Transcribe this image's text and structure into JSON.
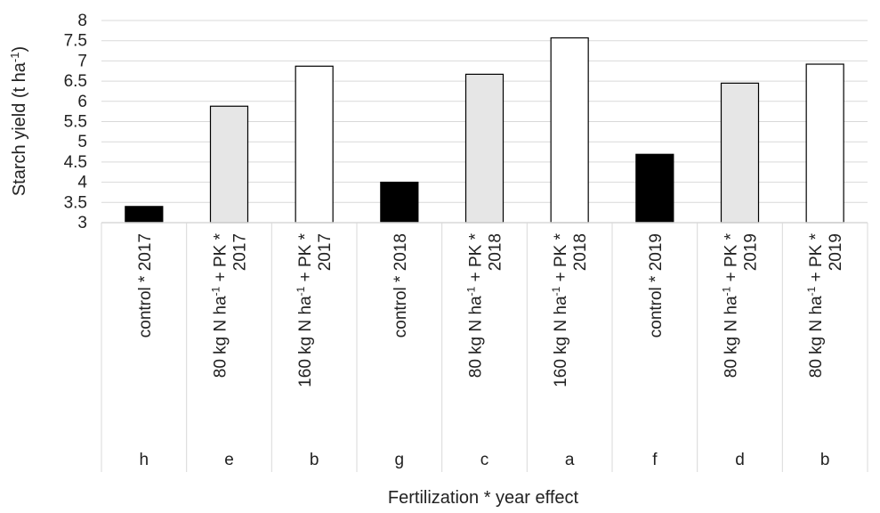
{
  "chart_data": {
    "type": "bar",
    "ylabel": "Starch yield (t ha",
    "ylabel_sup": "-1",
    "ylabel_tail": ")",
    "xlabel": "Fertilization * year effect",
    "ylim": [
      3,
      8
    ],
    "yticks": [
      "3",
      "3.5",
      "4",
      "4.5",
      "5",
      "5.5",
      "6",
      "6.5",
      "7",
      "7.5",
      "8"
    ],
    "grid": true,
    "legend": "none",
    "categories": [
      {
        "lines": [
          [
            "control * 2017"
          ]
        ],
        "letter": "h"
      },
      {
        "lines": [
          [
            "80 kg N ha",
            "-1",
            " + PK *"
          ],
          [
            "2017"
          ]
        ],
        "letter": "e"
      },
      {
        "lines": [
          [
            "160 kg N ha",
            "-1",
            " + PK *"
          ],
          [
            "2017"
          ]
        ],
        "letter": "b"
      },
      {
        "lines": [
          [
            "control * 2018"
          ]
        ],
        "letter": "g"
      },
      {
        "lines": [
          [
            "80 kg N ha",
            "-1",
            " + PK *"
          ],
          [
            "2018"
          ]
        ],
        "letter": "c"
      },
      {
        "lines": [
          [
            "160 kg N ha",
            "-1",
            " + PK *"
          ],
          [
            "2018"
          ]
        ],
        "letter": "a"
      },
      {
        "lines": [
          [
            "control * 2019"
          ]
        ],
        "letter": "f"
      },
      {
        "lines": [
          [
            "80 kg N ha",
            "-1",
            " + PK *"
          ],
          [
            "2019"
          ]
        ],
        "letter": "d"
      },
      {
        "lines": [
          [
            "80 kg N ha",
            "-1",
            " + PK *"
          ],
          [
            "2019"
          ]
        ],
        "letter": "b"
      }
    ],
    "values": [
      3.4,
      5.88,
      6.87,
      4.0,
      6.67,
      7.57,
      4.69,
      6.45,
      6.92
    ],
    "bar_colors": [
      "#000000",
      "#e6e6e6",
      "#ffffff",
      "#000000",
      "#e6e6e6",
      "#ffffff",
      "#000000",
      "#e6e6e6",
      "#ffffff"
    ],
    "bar_stroke": "#000000",
    "grid_color": "#d9d9d9"
  }
}
